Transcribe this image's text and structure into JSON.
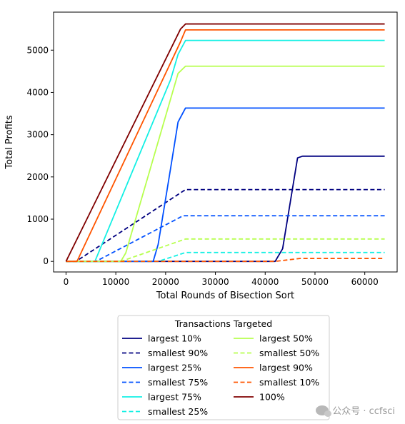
{
  "chart_data": {
    "type": "line",
    "title": "",
    "xlabel": "Total Rounds of Bisection Sort",
    "ylabel": "Total Profits",
    "xlim": [
      -2500,
      66500
    ],
    "ylim": [
      -250,
      5900
    ],
    "xticks": [
      0,
      10000,
      20000,
      30000,
      40000,
      50000,
      60000
    ],
    "yticks": [
      0,
      1000,
      2000,
      3000,
      4000,
      5000
    ],
    "grid": false,
    "legend": {
      "title": "Transactions Targeted",
      "placement": "below plot",
      "columns": 2
    },
    "series": [
      {
        "name": "largest 10%",
        "color": "#000080",
        "style": "solid",
        "points": [
          [
            0,
            0
          ],
          [
            42000,
            0
          ],
          [
            43500,
            300
          ],
          [
            46500,
            2450
          ],
          [
            47500,
            2490
          ],
          [
            64000,
            2490
          ]
        ]
      },
      {
        "name": "smallest 90%",
        "color": "#000080",
        "style": "dashed",
        "points": [
          [
            0,
            0
          ],
          [
            2000,
            0
          ],
          [
            24000,
            1700
          ],
          [
            64000,
            1700
          ]
        ]
      },
      {
        "name": "largest 25%",
        "color": "#0050ff",
        "style": "solid",
        "points": [
          [
            0,
            0
          ],
          [
            17500,
            0
          ],
          [
            18500,
            400
          ],
          [
            21000,
            2200
          ],
          [
            22500,
            3300
          ],
          [
            24000,
            3630
          ],
          [
            64000,
            3630
          ]
        ]
      },
      {
        "name": "smallest 75%",
        "color": "#0050ff",
        "style": "dashed",
        "points": [
          [
            0,
            0
          ],
          [
            6000,
            0
          ],
          [
            23500,
            1080
          ],
          [
            64000,
            1080
          ]
        ]
      },
      {
        "name": "largest 75%",
        "color": "#13f0e4",
        "style": "solid",
        "points": [
          [
            0,
            0
          ],
          [
            5800,
            0
          ],
          [
            21000,
            4300
          ],
          [
            22500,
            4900
          ],
          [
            24000,
            5230
          ],
          [
            64000,
            5230
          ]
        ]
      },
      {
        "name": "smallest 25%",
        "color": "#13f0e4",
        "style": "dashed",
        "points": [
          [
            0,
            0
          ],
          [
            18500,
            0
          ],
          [
            24000,
            210
          ],
          [
            64000,
            210
          ]
        ]
      },
      {
        "name": "largest 50%",
        "color": "#b7ff4f",
        "style": "solid",
        "points": [
          [
            0,
            0
          ],
          [
            11000,
            0
          ],
          [
            12000,
            200
          ],
          [
            22500,
            4450
          ],
          [
            24000,
            4620
          ],
          [
            64000,
            4620
          ]
        ]
      },
      {
        "name": "smallest 50%",
        "color": "#b7ff4f",
        "style": "dashed",
        "points": [
          [
            0,
            0
          ],
          [
            11000,
            0
          ],
          [
            24000,
            530
          ],
          [
            64000,
            530
          ]
        ]
      },
      {
        "name": "largest 90%",
        "color": "#ff5500",
        "style": "solid",
        "points": [
          [
            0,
            0
          ],
          [
            2200,
            0
          ],
          [
            23000,
            5200
          ],
          [
            24000,
            5480
          ],
          [
            64000,
            5480
          ]
        ]
      },
      {
        "name": "smallest 10%",
        "color": "#ff5500",
        "style": "dashed",
        "points": [
          [
            0,
            0
          ],
          [
            42000,
            0
          ],
          [
            47000,
            70
          ],
          [
            64000,
            70
          ]
        ]
      },
      {
        "name": "100%",
        "color": "#800000",
        "style": "solid",
        "points": [
          [
            0,
            0
          ],
          [
            23000,
            5500
          ],
          [
            24000,
            5620
          ],
          [
            64000,
            5620
          ]
        ]
      }
    ]
  },
  "watermark": {
    "text": "公众号 · ccfsci",
    "icon": "wechat-icon"
  }
}
